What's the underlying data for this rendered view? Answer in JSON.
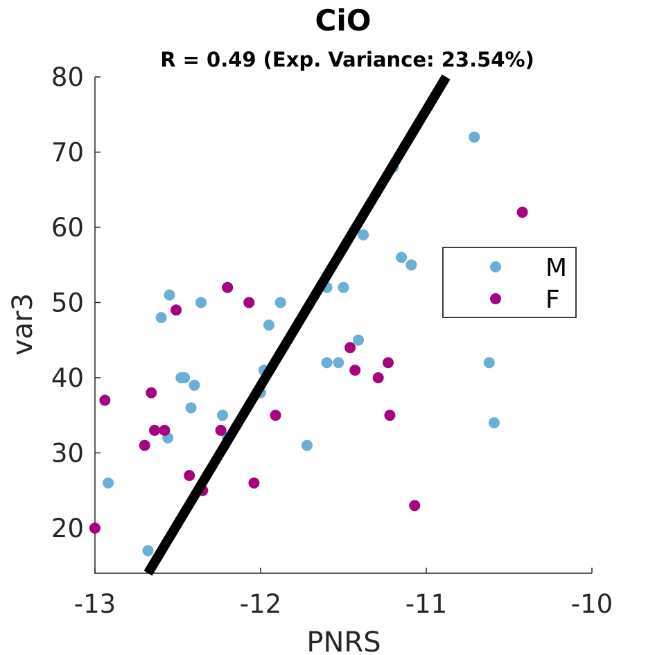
{
  "chart_data": {
    "type": "scatter",
    "title": "CiO",
    "subtitle": "R = 0.49 (Exp. Variance: 23.54%)",
    "xlabel": "PNRS",
    "ylabel": "var3",
    "xlim": [
      -13,
      -10
    ],
    "ylim": [
      14,
      80
    ],
    "xticks": [
      -13,
      -12,
      -11,
      -10
    ],
    "yticks": [
      20,
      30,
      40,
      50,
      60,
      70,
      80
    ],
    "grid": false,
    "legend_position": "right",
    "series": [
      {
        "name": "M",
        "color": "#6baed6",
        "points": [
          [
            -12.68,
            17
          ],
          [
            -12.92,
            26
          ],
          [
            -12.56,
            32
          ],
          [
            -12.42,
            36
          ],
          [
            -12.4,
            39
          ],
          [
            -12.46,
            40
          ],
          [
            -12.48,
            40
          ],
          [
            -12.6,
            48
          ],
          [
            -12.55,
            51
          ],
          [
            -12.36,
            50
          ],
          [
            -12.23,
            35
          ],
          [
            -12.2,
            32
          ],
          [
            -12.2,
            52
          ],
          [
            -12.0,
            38
          ],
          [
            -11.98,
            41
          ],
          [
            -11.95,
            47
          ],
          [
            -11.88,
            50
          ],
          [
            -11.72,
            31
          ],
          [
            -11.6,
            42
          ],
          [
            -11.53,
            42
          ],
          [
            -11.6,
            52
          ],
          [
            -11.5,
            52
          ],
          [
            -11.41,
            45
          ],
          [
            -11.38,
            59
          ],
          [
            -11.2,
            68
          ],
          [
            -11.15,
            56
          ],
          [
            -11.09,
            55
          ],
          [
            -10.71,
            72
          ],
          [
            -10.62,
            42
          ],
          [
            -10.59,
            34
          ]
        ]
      },
      {
        "name": "F",
        "color": "#a6037f",
        "points": [
          [
            -13.0,
            20
          ],
          [
            -12.94,
            37
          ],
          [
            -12.7,
            31
          ],
          [
            -12.66,
            38
          ],
          [
            -12.64,
            33
          ],
          [
            -12.58,
            33
          ],
          [
            -12.51,
            49
          ],
          [
            -12.43,
            27
          ],
          [
            -12.35,
            25
          ],
          [
            -12.24,
            33
          ],
          [
            -12.2,
            52
          ],
          [
            -12.07,
            50
          ],
          [
            -12.04,
            26
          ],
          [
            -11.91,
            35
          ],
          [
            -11.46,
            44
          ],
          [
            -11.43,
            41
          ],
          [
            -11.29,
            40
          ],
          [
            -11.23,
            42
          ],
          [
            -11.22,
            35
          ],
          [
            -11.07,
            23
          ],
          [
            -10.42,
            62
          ]
        ]
      }
    ],
    "fit_line": {
      "color": "#000000",
      "x": [
        -12.68,
        -10.88
      ],
      "y": [
        14,
        80
      ]
    }
  }
}
